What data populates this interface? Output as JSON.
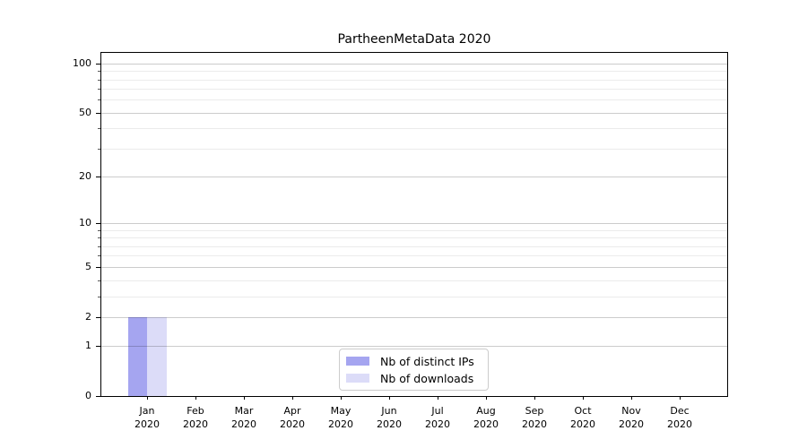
{
  "chart_data": {
    "type": "bar",
    "title": "PartheenMetaData 2020",
    "categories": [
      [
        "Jan",
        "2020"
      ],
      [
        "Feb",
        "2020"
      ],
      [
        "Mar",
        "2020"
      ],
      [
        "Apr",
        "2020"
      ],
      [
        "May",
        "2020"
      ],
      [
        "Jun",
        "2020"
      ],
      [
        "Jul",
        "2020"
      ],
      [
        "Aug",
        "2020"
      ],
      [
        "Sep",
        "2020"
      ],
      [
        "Oct",
        "2020"
      ],
      [
        "Nov",
        "2020"
      ],
      [
        "Dec",
        "2020"
      ]
    ],
    "series": [
      {
        "name": "Nb of distinct IPs",
        "color": "#a5a5f0",
        "values": [
          2,
          0,
          0,
          0,
          0,
          0,
          0,
          0,
          0,
          0,
          0,
          0
        ]
      },
      {
        "name": "Nb of downloads",
        "color": "#dcdcf8",
        "values": [
          2,
          0,
          0,
          0,
          0,
          0,
          0,
          0,
          0,
          0,
          0,
          0
        ]
      }
    ],
    "yscale": "log1p",
    "ylim": [
      0,
      116
    ],
    "y_tick_values": [
      0,
      1,
      2,
      5,
      10,
      20,
      50,
      100
    ],
    "y_tick_labels": [
      "0",
      "1",
      "2",
      "5",
      "10",
      "20",
      "50",
      "100"
    ],
    "y_minor_gridlines": [
      3,
      4,
      6,
      7,
      8,
      9,
      30,
      40,
      60,
      70,
      80,
      90
    ],
    "grid": "both",
    "legend_position": "lower center",
    "colors": {
      "major_grid": "rgba(0,0,0,0.20)",
      "minor_grid": "rgba(0,0,0,0.08)",
      "axis": "#000000",
      "background": "#ffffff"
    }
  }
}
